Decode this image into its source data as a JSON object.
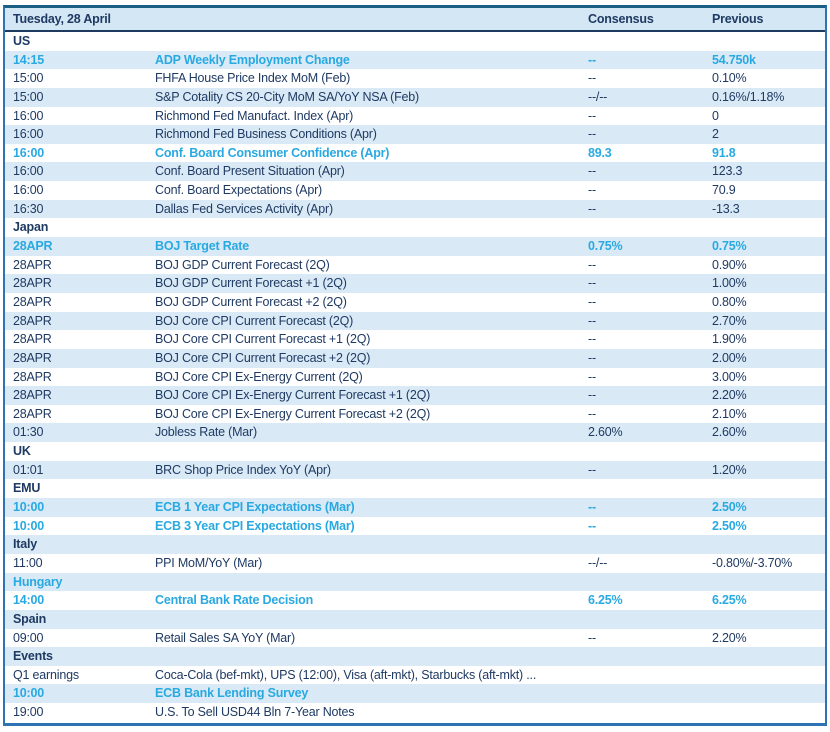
{
  "colors": {
    "accent_cyan": "#29A9E1",
    "navy_text": "#1F3A63",
    "stripe_bg": "#D9EAF6",
    "header_bg": "#D4E7F4",
    "frame_blue": "#2E74B5",
    "frame_top": "#1B5E84",
    "header_rule": "#1F3A5F"
  },
  "header": {
    "date": "Tuesday, 28 April",
    "consensus": "Consensus",
    "previous": "Previous"
  },
  "rows": [
    {
      "type": "section",
      "label": "US",
      "highlight": false
    },
    {
      "type": "event",
      "time": "14:15",
      "event": "ADP Weekly Employment Change",
      "consensus": "--",
      "previous": "54.750k",
      "highlight": true
    },
    {
      "type": "event",
      "time": "15:00",
      "event": "FHFA House Price Index MoM (Feb)",
      "consensus": "--",
      "previous": "0.10%",
      "highlight": false
    },
    {
      "type": "event",
      "time": "15:00",
      "event": "S&P Cotality CS 20-City MoM SA/YoY NSA (Feb)",
      "consensus": "--/--",
      "previous": "0.16%/1.18%",
      "highlight": false
    },
    {
      "type": "event",
      "time": "16:00",
      "event": "Richmond Fed Manufact. Index (Apr)",
      "consensus": "--",
      "previous": "0",
      "highlight": false
    },
    {
      "type": "event",
      "time": "16:00",
      "event": "Richmond Fed Business Conditions (Apr)",
      "consensus": "--",
      "previous": "2",
      "highlight": false
    },
    {
      "type": "event",
      "time": "16:00",
      "event": "Conf. Board Consumer Confidence (Apr)",
      "consensus": "89.3",
      "previous": "91.8",
      "highlight": true
    },
    {
      "type": "event",
      "time": "16:00",
      "event": "Conf. Board Present Situation (Apr)",
      "consensus": "--",
      "previous": "123.3",
      "highlight": false
    },
    {
      "type": "event",
      "time": "16:00",
      "event": "Conf. Board Expectations (Apr)",
      "consensus": "--",
      "previous": "70.9",
      "highlight": false
    },
    {
      "type": "event",
      "time": "16:30",
      "event": "Dallas Fed Services Activity (Apr)",
      "consensus": "--",
      "previous": "-13.3",
      "highlight": false
    },
    {
      "type": "section",
      "label": "Japan",
      "highlight": false
    },
    {
      "type": "event",
      "time": "28APR",
      "event": "BOJ Target Rate",
      "consensus": "0.75%",
      "previous": "0.75%",
      "highlight": true
    },
    {
      "type": "event",
      "time": "28APR",
      "event": "BOJ GDP Current Forecast (2Q)",
      "consensus": "--",
      "previous": "0.90%",
      "highlight": false
    },
    {
      "type": "event",
      "time": "28APR",
      "event": "BOJ GDP Current Forecast +1 (2Q)",
      "consensus": "--",
      "previous": "1.00%",
      "highlight": false
    },
    {
      "type": "event",
      "time": "28APR",
      "event": "BOJ GDP Current Forecast +2 (2Q)",
      "consensus": "--",
      "previous": "0.80%",
      "highlight": false
    },
    {
      "type": "event",
      "time": "28APR",
      "event": "BOJ Core CPI Current Forecast (2Q)",
      "consensus": "--",
      "previous": "2.70%",
      "highlight": false
    },
    {
      "type": "event",
      "time": "28APR",
      "event": "BOJ Core CPI Current Forecast +1 (2Q)",
      "consensus": "--",
      "previous": "1.90%",
      "highlight": false
    },
    {
      "type": "event",
      "time": "28APR",
      "event": "BOJ Core CPI Current Forecast +2 (2Q)",
      "consensus": "--",
      "previous": "2.00%",
      "highlight": false
    },
    {
      "type": "event",
      "time": "28APR",
      "event": "BOJ Core CPI Ex-Energy Current (2Q)",
      "consensus": "--",
      "previous": "3.00%",
      "highlight": false
    },
    {
      "type": "event",
      "time": "28APR",
      "event": "BOJ Core CPI Ex-Energy Current Forecast +1 (2Q)",
      "consensus": "--",
      "previous": "2.20%",
      "highlight": false
    },
    {
      "type": "event",
      "time": "28APR",
      "event": "BOJ Core CPI Ex-Energy Current Forecast +2 (2Q)",
      "consensus": "--",
      "previous": "2.10%",
      "highlight": false
    },
    {
      "type": "event",
      "time": "01:30",
      "event": "Jobless Rate (Mar)",
      "consensus": "2.60%",
      "previous": "2.60%",
      "highlight": false
    },
    {
      "type": "section",
      "label": "UK",
      "highlight": false
    },
    {
      "type": "event",
      "time": "01:01",
      "event": "BRC Shop Price Index YoY (Apr)",
      "consensus": "--",
      "previous": "1.20%",
      "highlight": false
    },
    {
      "type": "section",
      "label": "EMU",
      "highlight": false
    },
    {
      "type": "event",
      "time": "10:00",
      "event": "ECB 1 Year CPI Expectations (Mar)",
      "consensus": "--",
      "previous": "2.50%",
      "highlight": true
    },
    {
      "type": "event",
      "time": "10:00",
      "event": "ECB 3 Year CPI Expectations (Mar)",
      "consensus": "--",
      "previous": "2.50%",
      "highlight": true
    },
    {
      "type": "section",
      "label": "Italy",
      "highlight": false
    },
    {
      "type": "event",
      "time": "11:00",
      "event": "PPI MoM/YoY (Mar)",
      "consensus": "--/--",
      "previous": "-0.80%/-3.70%",
      "highlight": false
    },
    {
      "type": "section",
      "label": "Hungary",
      "highlight": true
    },
    {
      "type": "event",
      "time": "14:00",
      "event": "Central Bank Rate Decision",
      "consensus": "6.25%",
      "previous": "6.25%",
      "highlight": true
    },
    {
      "type": "section",
      "label": "Spain",
      "highlight": false
    },
    {
      "type": "event",
      "time": "09:00",
      "event": "Retail Sales SA YoY (Mar)",
      "consensus": "--",
      "previous": "2.20%",
      "highlight": false
    },
    {
      "type": "section",
      "label": "Events",
      "highlight": false
    },
    {
      "type": "event",
      "time": "Q1 earnings",
      "event": "Coca-Cola (bef-mkt), UPS (12:00), Visa (aft-mkt), Starbucks (aft-mkt) ...",
      "consensus": "",
      "previous": "",
      "highlight": false
    },
    {
      "type": "event",
      "time": "10:00",
      "event": "ECB Bank Lending Survey",
      "consensus": "",
      "previous": "",
      "highlight": true
    },
    {
      "type": "event",
      "time": "19:00",
      "event": "U.S. To Sell USD44 Bln 7-Year Notes",
      "consensus": "",
      "previous": "",
      "highlight": false
    }
  ]
}
